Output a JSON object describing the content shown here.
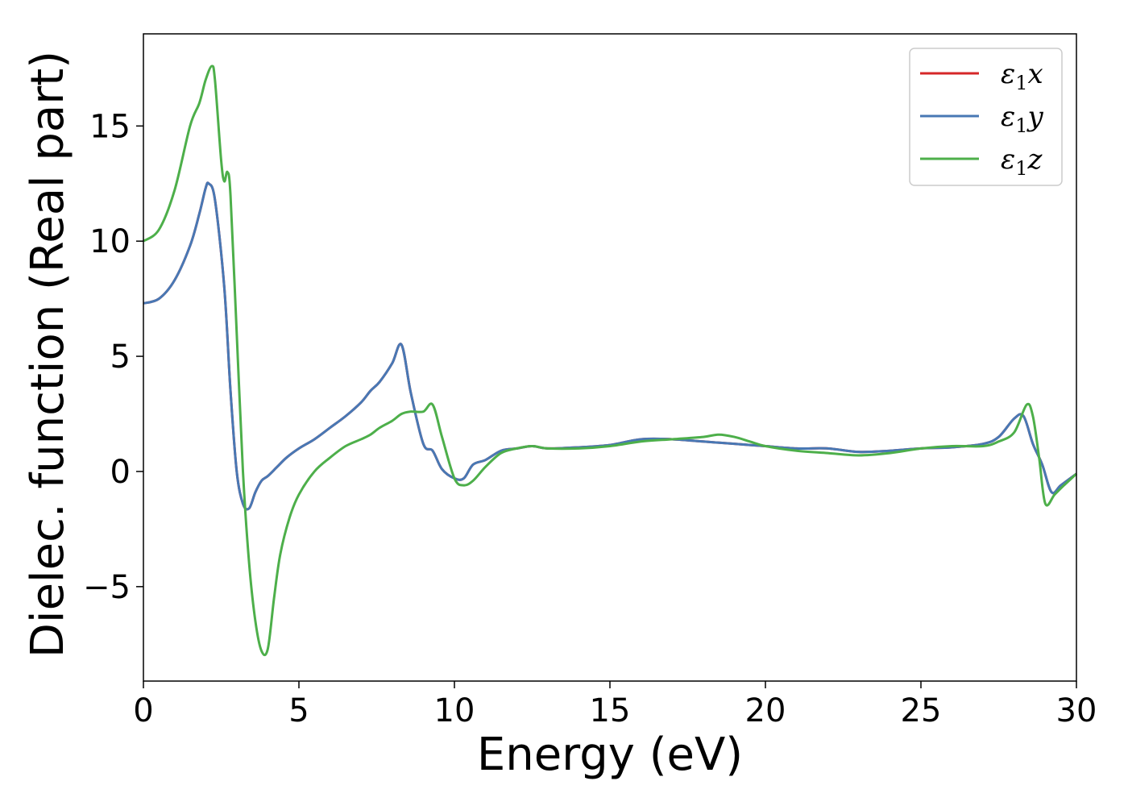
{
  "chart_data": {
    "type": "line",
    "title": "",
    "xlabel": "Energy (eV)",
    "ylabel": "Dielec. function (Real part)",
    "xlim": [
      0,
      30
    ],
    "ylim": [
      -9.1,
      19.0
    ],
    "xticks": [
      0,
      5,
      10,
      15,
      20,
      25,
      30
    ],
    "yticks": [
      -5,
      0,
      5,
      10,
      15
    ],
    "ytick_labels": [
      "−5",
      "0",
      "5",
      "10",
      "15"
    ],
    "grid": false,
    "legend_position": "top-right",
    "series": [
      {
        "name": "ε",
        "sub": "1",
        "suffix": "x",
        "color": "#d62728",
        "x": [
          0,
          0.5,
          1.0,
          1.5,
          1.8,
          2.0,
          2.1,
          2.3,
          2.6,
          2.8,
          3.0,
          3.2,
          3.4,
          3.6,
          3.8,
          4.0,
          4.3,
          4.6,
          5.0,
          5.5,
          6.0,
          6.5,
          7.0,
          7.3,
          7.6,
          8.0,
          8.3,
          8.6,
          9.0,
          9.3,
          9.6,
          10.0,
          10.3,
          10.6,
          11.0,
          11.5,
          12.0,
          12.5,
          13.0,
          14.0,
          15.0,
          16.0,
          17.0,
          18.0,
          19.0,
          20.0,
          21.0,
          22.0,
          23.0,
          24.0,
          25.0,
          26.0,
          27.0,
          27.5,
          28.0,
          28.3,
          28.6,
          28.9,
          29.2,
          29.5,
          30.0
        ],
        "y": [
          7.3,
          7.5,
          8.3,
          9.8,
          11.2,
          12.3,
          12.5,
          11.8,
          8.0,
          3.5,
          0.0,
          -1.4,
          -1.6,
          -0.9,
          -0.4,
          -0.2,
          0.2,
          0.6,
          1.0,
          1.4,
          1.9,
          2.4,
          3.0,
          3.5,
          3.9,
          4.7,
          5.5,
          3.4,
          1.2,
          0.9,
          0.1,
          -0.3,
          -0.3,
          0.3,
          0.5,
          0.9,
          1.0,
          1.1,
          1.0,
          1.05,
          1.15,
          1.4,
          1.4,
          1.3,
          1.2,
          1.1,
          1.0,
          1.0,
          0.85,
          0.9,
          1.0,
          1.05,
          1.2,
          1.5,
          2.3,
          2.4,
          1.2,
          0.3,
          -0.9,
          -0.6,
          -0.1
        ]
      },
      {
        "name": "ε",
        "sub": "1",
        "suffix": "y",
        "color": "#4878b4",
        "x": [
          0,
          0.5,
          1.0,
          1.5,
          1.8,
          2.0,
          2.1,
          2.3,
          2.6,
          2.8,
          3.0,
          3.2,
          3.4,
          3.6,
          3.8,
          4.0,
          4.3,
          4.6,
          5.0,
          5.5,
          6.0,
          6.5,
          7.0,
          7.3,
          7.6,
          8.0,
          8.3,
          8.6,
          9.0,
          9.3,
          9.6,
          10.0,
          10.3,
          10.6,
          11.0,
          11.5,
          12.0,
          12.5,
          13.0,
          14.0,
          15.0,
          16.0,
          17.0,
          18.0,
          19.0,
          20.0,
          21.0,
          22.0,
          23.0,
          24.0,
          25.0,
          26.0,
          27.0,
          27.5,
          28.0,
          28.3,
          28.6,
          28.9,
          29.2,
          29.5,
          30.0
        ],
        "y": [
          7.3,
          7.5,
          8.3,
          9.8,
          11.2,
          12.3,
          12.5,
          11.8,
          8.0,
          3.5,
          0.0,
          -1.4,
          -1.6,
          -0.9,
          -0.4,
          -0.2,
          0.2,
          0.6,
          1.0,
          1.4,
          1.9,
          2.4,
          3.0,
          3.5,
          3.9,
          4.7,
          5.5,
          3.4,
          1.2,
          0.9,
          0.1,
          -0.3,
          -0.3,
          0.3,
          0.5,
          0.9,
          1.0,
          1.1,
          1.0,
          1.05,
          1.15,
          1.4,
          1.4,
          1.3,
          1.2,
          1.1,
          1.0,
          1.0,
          0.85,
          0.9,
          1.0,
          1.05,
          1.2,
          1.5,
          2.3,
          2.4,
          1.2,
          0.3,
          -0.9,
          -0.6,
          -0.1
        ]
      },
      {
        "name": "ε",
        "sub": "1",
        "suffix": "z",
        "color": "#4daf4a",
        "x": [
          0,
          0.5,
          1.0,
          1.5,
          1.8,
          2.0,
          2.2,
          2.3,
          2.5,
          2.6,
          2.7,
          2.8,
          3.0,
          3.2,
          3.4,
          3.6,
          3.8,
          4.0,
          4.2,
          4.4,
          4.7,
          5.0,
          5.5,
          6.0,
          6.5,
          7.0,
          7.3,
          7.6,
          8.0,
          8.3,
          8.6,
          9.0,
          9.3,
          9.6,
          10.0,
          10.3,
          10.6,
          11.0,
          11.5,
          12.0,
          12.5,
          13.0,
          14.0,
          15.0,
          16.0,
          17.0,
          18.0,
          18.5,
          19.0,
          19.5,
          20.0,
          21.0,
          22.0,
          23.0,
          24.0,
          25.0,
          26.0,
          27.0,
          27.5,
          28.0,
          28.4,
          28.6,
          28.8,
          29.0,
          29.3,
          29.6,
          30.0
        ],
        "y": [
          10.0,
          10.5,
          12.2,
          15.0,
          16.0,
          17.0,
          17.6,
          17.0,
          13.5,
          12.6,
          13.0,
          12.0,
          6.0,
          0.0,
          -4.0,
          -6.5,
          -7.8,
          -7.7,
          -5.5,
          -3.6,
          -2.0,
          -1.0,
          0.0,
          0.6,
          1.1,
          1.4,
          1.6,
          1.9,
          2.2,
          2.5,
          2.6,
          2.6,
          2.9,
          1.5,
          -0.3,
          -0.6,
          -0.4,
          0.2,
          0.8,
          1.0,
          1.1,
          1.0,
          1.0,
          1.1,
          1.3,
          1.4,
          1.5,
          1.6,
          1.5,
          1.3,
          1.1,
          0.9,
          0.8,
          0.7,
          0.8,
          1.0,
          1.1,
          1.1,
          1.3,
          1.7,
          2.9,
          2.4,
          0.6,
          -1.4,
          -1.0,
          -0.6,
          -0.1
        ]
      }
    ]
  }
}
